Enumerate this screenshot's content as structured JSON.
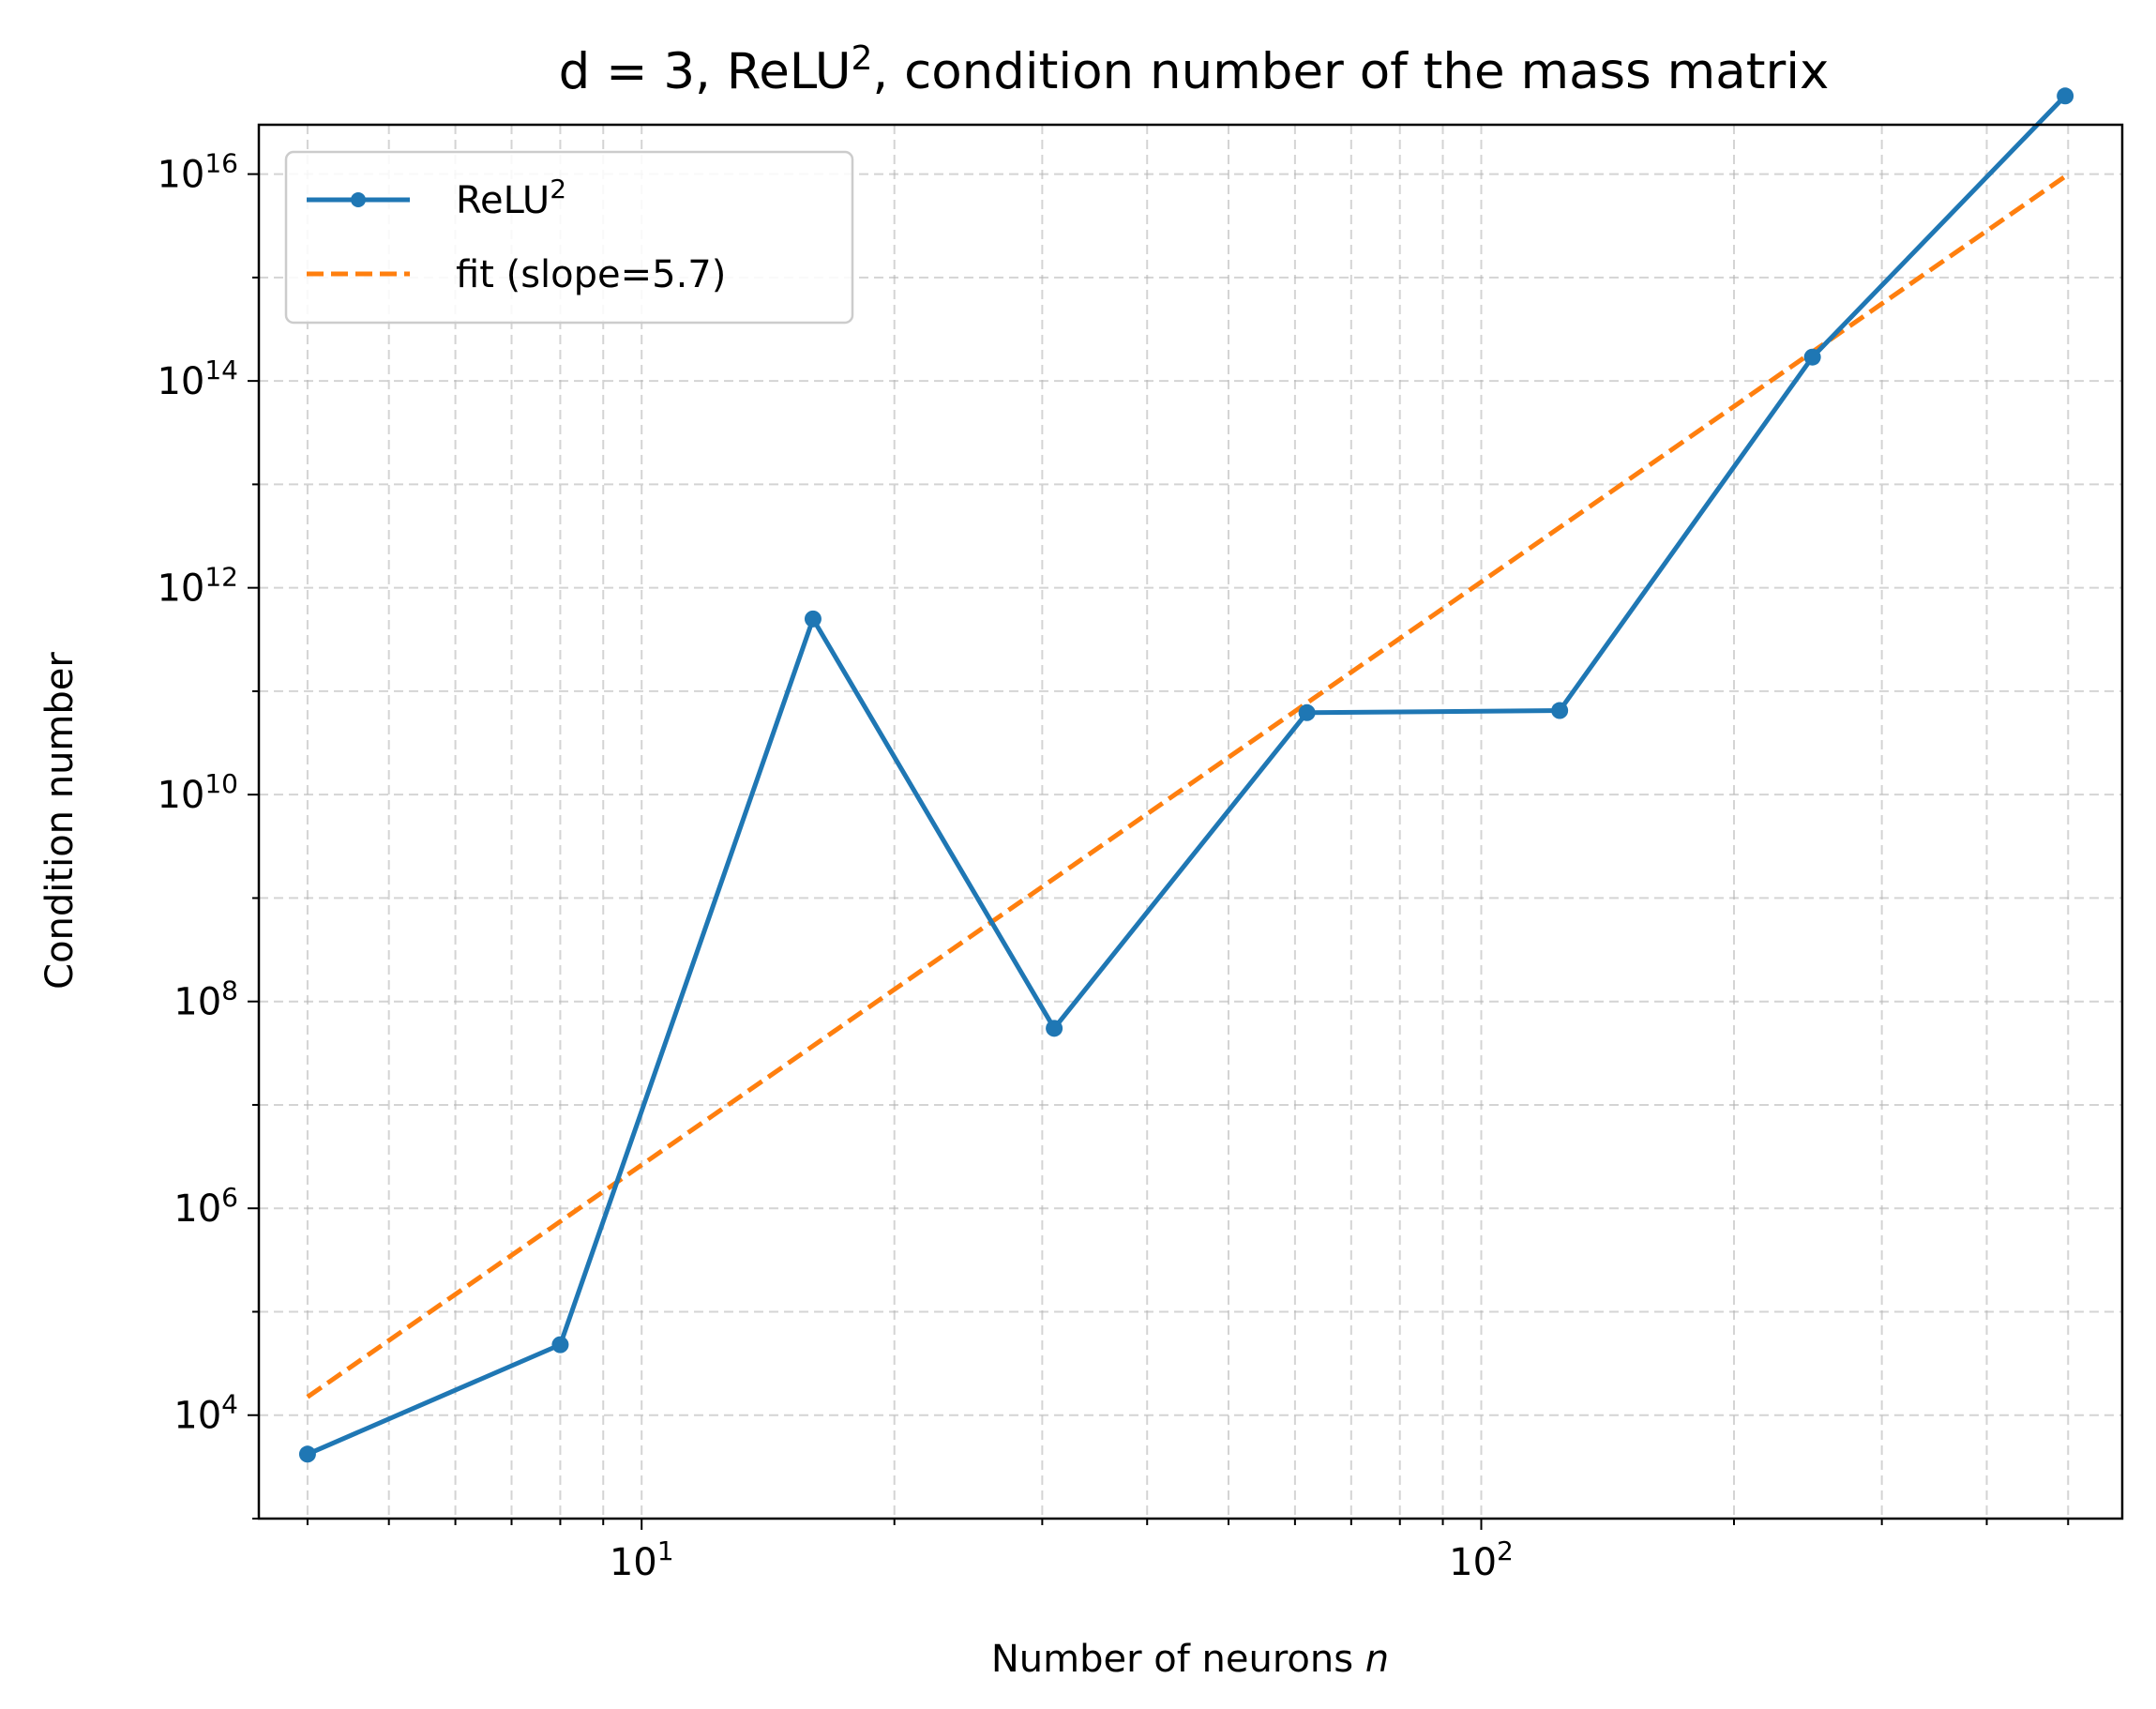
{
  "chart_data": {
    "type": "line",
    "title": "d = 3, ReLU², condition number of the mass matrix",
    "title_main": "d = 3, ReLU",
    "title_sup": "2",
    "title_rest": ", condition number of the mass matrix",
    "xlabel": "Number of neurons ",
    "xlabel_var": "n",
    "ylabel": "Condition number",
    "x_scale": "log",
    "y_scale": "log",
    "xlim": [
      3.5,
      580
    ],
    "ylim": [
      1000,
      30000000000000000
    ],
    "grid": true,
    "legend_placement": "top-left",
    "x_ticks": [
      {
        "value": 10,
        "base": "10",
        "exp": "1"
      },
      {
        "value": 100,
        "base": "10",
        "exp": "2"
      }
    ],
    "y_ticks": [
      {
        "value": 10000,
        "base": "10",
        "exp": "4"
      },
      {
        "value": 1000000,
        "base": "10",
        "exp": "6"
      },
      {
        "value": 100000000,
        "base": "10",
        "exp": "8"
      },
      {
        "value": 10000000000,
        "base": "10",
        "exp": "10"
      },
      {
        "value": 1000000000000,
        "base": "10",
        "exp": "12"
      },
      {
        "value": 100000000000000,
        "base": "10",
        "exp": "14"
      },
      {
        "value": 10000000000000000,
        "base": "10",
        "exp": "16"
      }
    ],
    "series": [
      {
        "name": "ReLU²",
        "legend_main": "ReLU",
        "legend_sup": "2",
        "color": "#1f77b4",
        "style": "solid-with-markers",
        "x": [
          4,
          8,
          16,
          31,
          62,
          124,
          248,
          496
        ],
        "y": [
          4200,
          48000,
          500000000000,
          55000000,
          62000000000,
          65000000000,
          170000000000000,
          57000000000000000
        ]
      },
      {
        "name": "fit (slope=5.7)",
        "color": "#ff7f0e",
        "style": "dashed",
        "x": [
          4,
          496
        ],
        "y": [
          15000,
          9500000000000000
        ]
      }
    ]
  }
}
